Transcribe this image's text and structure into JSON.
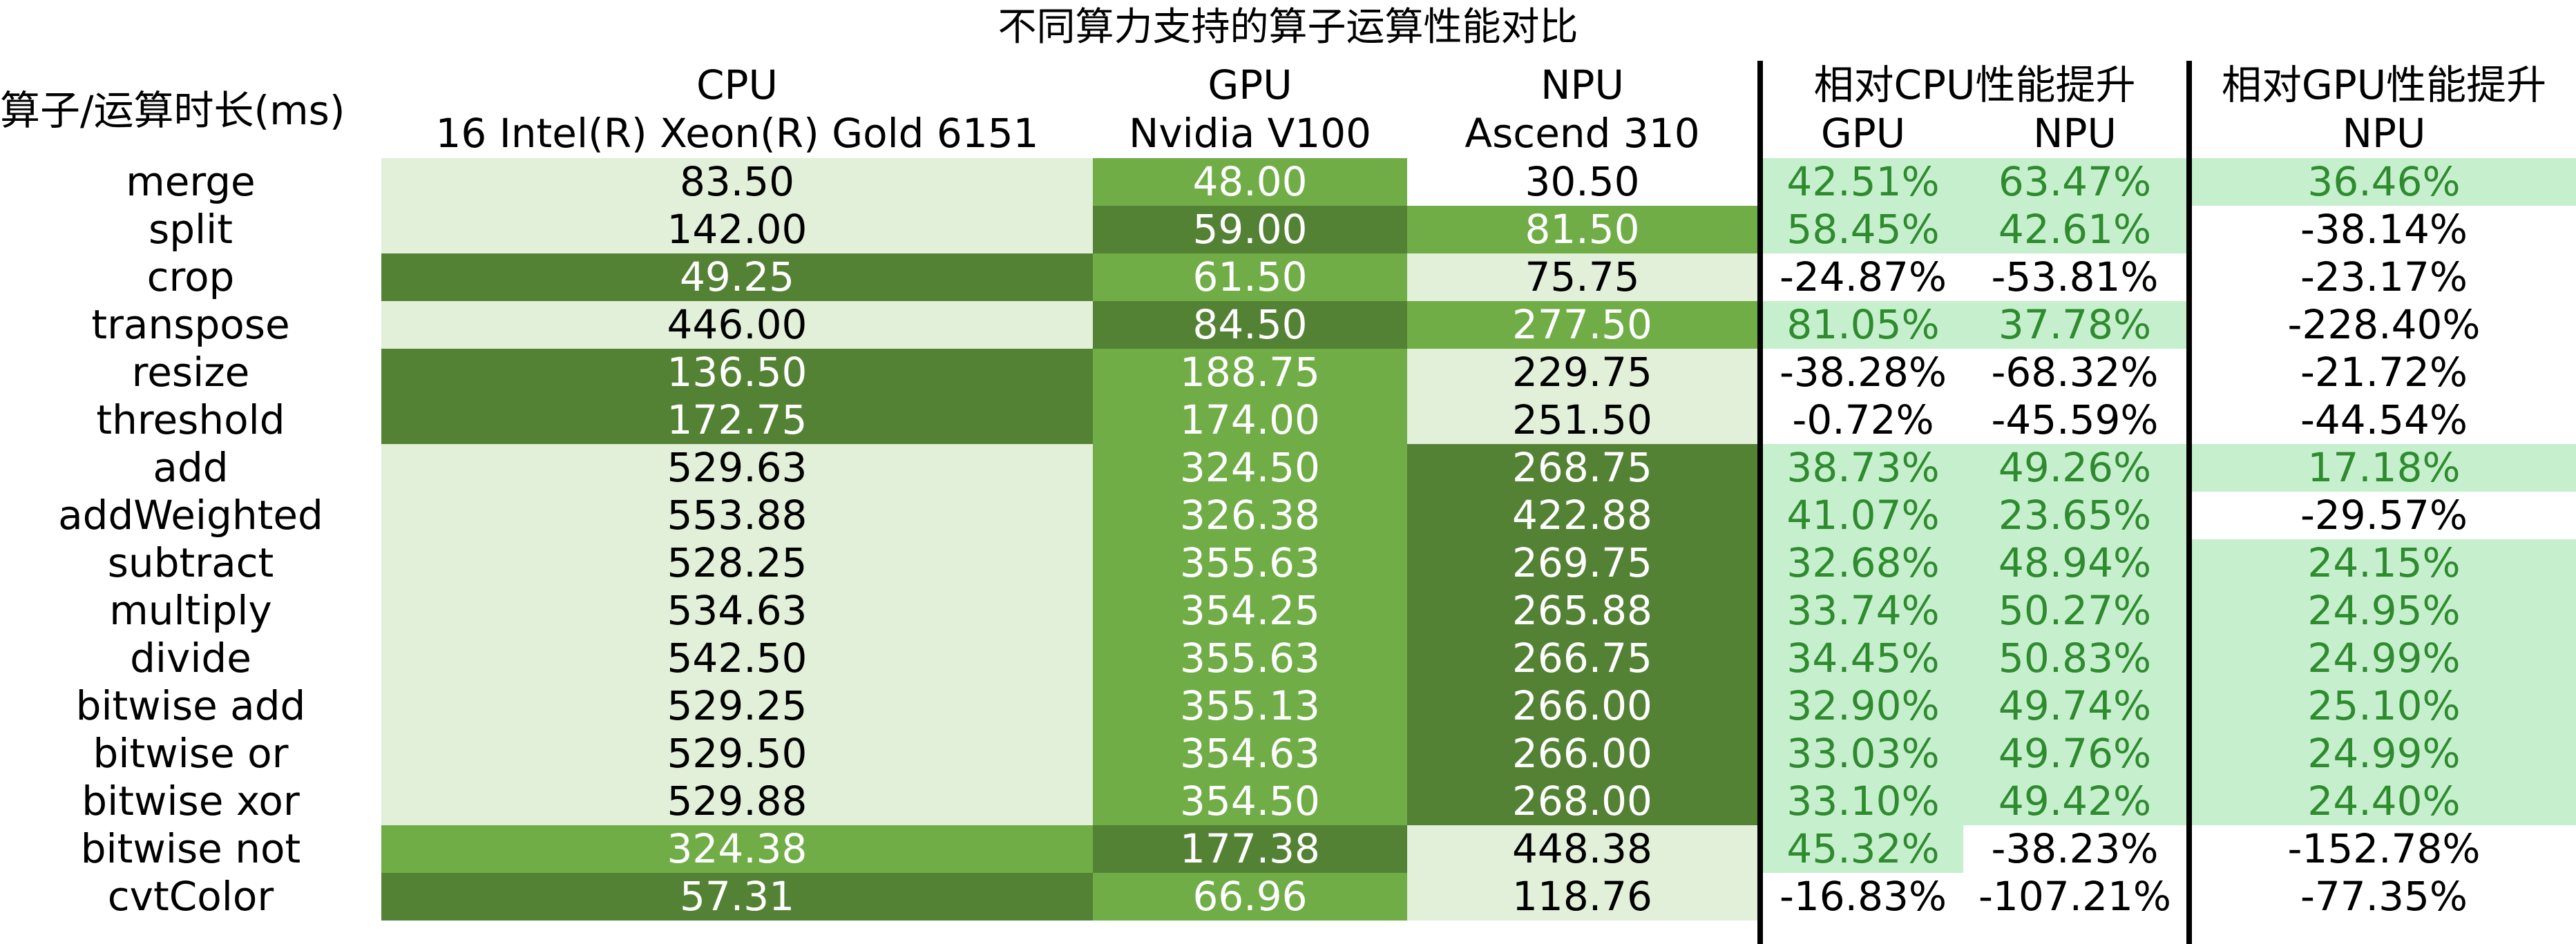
{
  "title": "不同算力支持的算子运算性能对比",
  "header": {
    "row_header": "算子/运算时长(ms)",
    "cpu_name": "CPU",
    "cpu_model": "16 Intel(R) Xeon(R) Gold 6151",
    "gpu_name": "GPU",
    "gpu_model": "Nvidia V100",
    "npu_name": "NPU",
    "npu_model": "Ascend 310",
    "vs_cpu_group": "相对CPU性能提升",
    "vs_cpu_gpu": "GPU",
    "vs_cpu_npu": "NPU",
    "vs_gpu_group": "相对GPU性能提升",
    "vs_gpu_npu": "NPU"
  },
  "colors": {
    "pale_green": "#e2efd9",
    "medium_green": "#70ad47",
    "dark_green": "#548235",
    "mint_highlight": "#c6efce",
    "mint_text": "#2e8b2e"
  },
  "rows": [
    {
      "op": "merge",
      "cpu": "83.50",
      "gpu": "48.00",
      "npu": "30.50",
      "cpu_gpu": "42.51%",
      "cpu_npu": "63.47%",
      "gpu_npu": "36.46%"
    },
    {
      "op": "split",
      "cpu": "142.00",
      "gpu": "59.00",
      "npu": "81.50",
      "cpu_gpu": "58.45%",
      "cpu_npu": "42.61%",
      "gpu_npu": "-38.14%"
    },
    {
      "op": "crop",
      "cpu": "49.25",
      "gpu": "61.50",
      "npu": "75.75",
      "cpu_gpu": "-24.87%",
      "cpu_npu": "-53.81%",
      "gpu_npu": "-23.17%"
    },
    {
      "op": "transpose",
      "cpu": "446.00",
      "gpu": "84.50",
      "npu": "277.50",
      "cpu_gpu": "81.05%",
      "cpu_npu": "37.78%",
      "gpu_npu": "-228.40%"
    },
    {
      "op": "resize",
      "cpu": "136.50",
      "gpu": "188.75",
      "npu": "229.75",
      "cpu_gpu": "-38.28%",
      "cpu_npu": "-68.32%",
      "gpu_npu": "-21.72%"
    },
    {
      "op": "threshold",
      "cpu": "172.75",
      "gpu": "174.00",
      "npu": "251.50",
      "cpu_gpu": "-0.72%",
      "cpu_npu": "-45.59%",
      "gpu_npu": "-44.54%"
    },
    {
      "op": "add",
      "cpu": "529.63",
      "gpu": "324.50",
      "npu": "268.75",
      "cpu_gpu": "38.73%",
      "cpu_npu": "49.26%",
      "gpu_npu": "17.18%"
    },
    {
      "op": "addWeighted",
      "cpu": "553.88",
      "gpu": "326.38",
      "npu": "422.88",
      "cpu_gpu": "41.07%",
      "cpu_npu": "23.65%",
      "gpu_npu": "-29.57%"
    },
    {
      "op": "subtract",
      "cpu": "528.25",
      "gpu": "355.63",
      "npu": "269.75",
      "cpu_gpu": "32.68%",
      "cpu_npu": "48.94%",
      "gpu_npu": "24.15%"
    },
    {
      "op": "multiply",
      "cpu": "534.63",
      "gpu": "354.25",
      "npu": "265.88",
      "cpu_gpu": "33.74%",
      "cpu_npu": "50.27%",
      "gpu_npu": "24.95%"
    },
    {
      "op": "divide",
      "cpu": "542.50",
      "gpu": "355.63",
      "npu": "266.75",
      "cpu_gpu": "34.45%",
      "cpu_npu": "50.83%",
      "gpu_npu": "24.99%"
    },
    {
      "op": "bitwise add",
      "cpu": "529.25",
      "gpu": "355.13",
      "npu": "266.00",
      "cpu_gpu": "32.90%",
      "cpu_npu": "49.74%",
      "gpu_npu": "25.10%"
    },
    {
      "op": "bitwise or",
      "cpu": "529.50",
      "gpu": "354.63",
      "npu": "266.00",
      "cpu_gpu": "33.03%",
      "cpu_npu": "49.76%",
      "gpu_npu": "24.99%"
    },
    {
      "op": "bitwise xor",
      "cpu": "529.88",
      "gpu": "354.50",
      "npu": "268.00",
      "cpu_gpu": "33.10%",
      "cpu_npu": "49.42%",
      "gpu_npu": "24.40%"
    },
    {
      "op": "bitwise not",
      "cpu": "324.38",
      "gpu": "177.38",
      "npu": "448.38",
      "cpu_gpu": "45.32%",
      "cpu_npu": "-38.23%",
      "gpu_npu": "-152.78%"
    },
    {
      "op": "cvtColor",
      "cpu": "57.31",
      "gpu": "66.96",
      "npu": "118.76",
      "cpu_gpu": "-16.83%",
      "cpu_npu": "-107.21%",
      "gpu_npu": "-77.35%"
    }
  ],
  "cell_shading": {
    "cpu": [
      "pale",
      "pale",
      "dark",
      "pale",
      "dark",
      "dark",
      "pale",
      "pale",
      "pale",
      "pale",
      "pale",
      "pale",
      "pale",
      "pale",
      "medium",
      "dark"
    ],
    "gpu": [
      "medium",
      "dark",
      "medium",
      "dark",
      "medium",
      "medium",
      "medium",
      "medium",
      "medium",
      "medium",
      "medium",
      "medium",
      "medium",
      "medium",
      "dark",
      "medium"
    ],
    "npu": [
      "none",
      "medium",
      "pale",
      "medium",
      "pale",
      "pale",
      "dark",
      "dark",
      "dark",
      "dark",
      "dark",
      "dark",
      "dark",
      "dark",
      "pale",
      "pale"
    ],
    "cpu_gpu": [
      true,
      true,
      false,
      true,
      false,
      false,
      true,
      true,
      true,
      true,
      true,
      true,
      true,
      true,
      true,
      false
    ],
    "cpu_npu": [
      true,
      true,
      false,
      true,
      false,
      false,
      true,
      true,
      true,
      true,
      true,
      true,
      true,
      true,
      false,
      false
    ],
    "gpu_npu": [
      true,
      false,
      false,
      false,
      false,
      false,
      true,
      false,
      true,
      true,
      true,
      true,
      true,
      true,
      false,
      false
    ]
  }
}
